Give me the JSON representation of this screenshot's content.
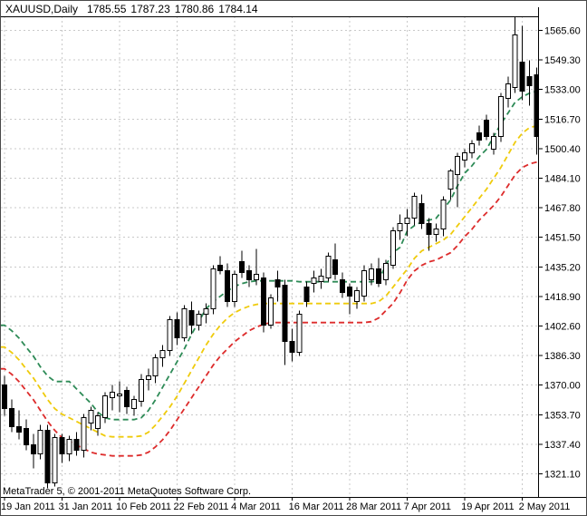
{
  "window": {
    "title": {
      "symbol_period": "XAUUSD,Daily",
      "open": "1785.55",
      "high": "1787.23",
      "low": "1780.86",
      "close": "1784.14"
    },
    "watermark": "MetaTrader 5, © 2001-2011 MetaQuotes Software Corp."
  },
  "chart_data": {
    "type": "candlestick",
    "symbol": "XAUUSD",
    "timeframe": "Daily",
    "title": "XAUUSD,Daily  1785.55 1787.23 1780.86 1784.14",
    "grid": true,
    "legend": false,
    "ylim": [
      1310,
      1580
    ],
    "y_axis": {
      "side": "right",
      "tick_step": 16.3,
      "tick_labels": [
        "1565.60",
        "1549.30",
        "1533.00",
        "1516.70",
        "1500.40",
        "1484.10",
        "1467.80",
        "1451.50",
        "1435.20",
        "1418.90",
        "1402.60",
        "1386.30",
        "1370.00",
        "1353.70",
        "1337.40",
        "1321.10"
      ],
      "tick_values": [
        1565.6,
        1549.3,
        1533.0,
        1516.7,
        1500.4,
        1484.1,
        1467.8,
        1451.5,
        1435.2,
        1418.9,
        1402.6,
        1386.3,
        1370.0,
        1353.7,
        1337.4,
        1321.1
      ]
    },
    "x_axis": {
      "tick_labels": [
        "19 Jan 2011",
        "31 Jan 2011",
        "10 Feb 2011",
        "22 Feb 2011",
        "4 Mar 2011",
        "16 Mar 2011",
        "28 Mar 2011",
        "7 Apr 2011",
        "19 Apr 2011",
        "2 May 2011"
      ],
      "tick_bars": [
        0,
        8,
        16,
        24,
        32,
        40,
        48,
        56,
        64,
        72
      ]
    },
    "candles": {
      "ohlc": [
        [
          1370,
          1375,
          1353,
          1357
        ],
        [
          1357,
          1362,
          1344,
          1347
        ],
        [
          1347,
          1356,
          1340,
          1344
        ],
        [
          1346,
          1351,
          1334,
          1337
        ],
        [
          1337,
          1343,
          1324,
          1332
        ],
        [
          1332,
          1348,
          1329,
          1345
        ],
        [
          1345,
          1348,
          1313,
          1316
        ],
        [
          1316,
          1343,
          1314,
          1341
        ],
        [
          1341,
          1343,
          1327,
          1332
        ],
        [
          1332,
          1342,
          1328,
          1340
        ],
        [
          1340,
          1344,
          1331,
          1334
        ],
        [
          1334,
          1354,
          1330,
          1352
        ],
        [
          1349,
          1358,
          1345,
          1356
        ],
        [
          1346,
          1355,
          1342,
          1353
        ],
        [
          1352,
          1366,
          1349,
          1364
        ],
        [
          1363,
          1370,
          1356,
          1366
        ],
        [
          1364,
          1372,
          1355,
          1365
        ],
        [
          1367,
          1369,
          1354,
          1358
        ],
        [
          1357,
          1364,
          1353,
          1362
        ],
        [
          1361,
          1376,
          1358,
          1373
        ],
        [
          1373,
          1379,
          1367,
          1375
        ],
        [
          1375,
          1387,
          1371,
          1385
        ],
        [
          1385,
          1392,
          1380,
          1389
        ],
        [
          1389,
          1408,
          1386,
          1406
        ],
        [
          1406,
          1410,
          1392,
          1396
        ],
        [
          1396,
          1414,
          1394,
          1412
        ],
        [
          1411,
          1416,
          1398,
          1403
        ],
        [
          1403,
          1411,
          1400,
          1409
        ],
        [
          1409,
          1415,
          1404,
          1412
        ],
        [
          1412,
          1436,
          1409,
          1434
        ],
        [
          1436,
          1441,
          1431,
          1433
        ],
        [
          1433,
          1437,
          1413,
          1416
        ],
        [
          1416,
          1433,
          1413,
          1431
        ],
        [
          1438,
          1444,
          1429,
          1432
        ],
        [
          1433,
          1436,
          1424,
          1428
        ],
        [
          1428,
          1445,
          1425,
          1431
        ],
        [
          1429,
          1432,
          1399,
          1403
        ],
        [
          1403,
          1420,
          1401,
          1418
        ],
        [
          1428,
          1433,
          1416,
          1424
        ],
        [
          1425,
          1428,
          1381,
          1394
        ],
        [
          1394,
          1401,
          1383,
          1388
        ],
        [
          1388,
          1411,
          1386,
          1409
        ],
        [
          1424,
          1427,
          1413,
          1416
        ],
        [
          1426,
          1433,
          1421,
          1429
        ],
        [
          1427,
          1434,
          1423,
          1430
        ],
        [
          1429,
          1443,
          1427,
          1441
        ],
        [
          1439,
          1448,
          1428,
          1431
        ],
        [
          1428,
          1432,
          1418,
          1421
        ],
        [
          1424,
          1426,
          1409,
          1419
        ],
        [
          1416,
          1424,
          1412,
          1422
        ],
        [
          1419,
          1436,
          1416,
          1433
        ],
        [
          1428,
          1437,
          1425,
          1434
        ],
        [
          1434,
          1440,
          1424,
          1426
        ],
        [
          1428,
          1439,
          1425,
          1437
        ],
        [
          1436,
          1457,
          1434,
          1455
        ],
        [
          1455,
          1464,
          1450,
          1459
        ],
        [
          1459,
          1467,
          1452,
          1462
        ],
        [
          1462,
          1476,
          1458,
          1474
        ],
        [
          1470,
          1475,
          1456,
          1459
        ],
        [
          1459,
          1462,
          1444,
          1453
        ],
        [
          1453,
          1459,
          1449,
          1456
        ],
        [
          1456,
          1474,
          1452,
          1472
        ],
        [
          1478,
          1489,
          1472,
          1488
        ],
        [
          1486,
          1498,
          1468,
          1496
        ],
        [
          1494,
          1500,
          1490,
          1498
        ],
        [
          1498,
          1505,
          1495,
          1503
        ],
        [
          1509,
          1513,
          1502,
          1505
        ],
        [
          1516,
          1519,
          1505,
          1507
        ],
        [
          1500,
          1509,
          1497,
          1507
        ],
        [
          1507,
          1531,
          1504,
          1529
        ],
        [
          1528,
          1540,
          1523,
          1536
        ],
        [
          1534,
          1574,
          1531,
          1563
        ],
        [
          1548,
          1568,
          1527,
          1532
        ],
        [
          1540,
          1549,
          1524,
          1535
        ],
        [
          1541,
          1545,
          1497,
          1507
        ]
      ]
    },
    "overlays": [
      {
        "name": "upper-band",
        "color": "#2e8b57",
        "values": [
          1403,
          1400,
          1396,
          1391,
          1386,
          1380,
          1375,
          1372,
          1372,
          1372,
          1368,
          1364,
          1360,
          1355,
          1352,
          1351,
          1351,
          1351,
          1351,
          1352,
          1356,
          1362,
          1369,
          1376,
          1383,
          1390,
          1398,
          1405,
          1412,
          1416,
          1419,
          1422,
          1424.5,
          1426,
          1427,
          1427.5,
          1427.5,
          1427.5,
          1427.5,
          1427.5,
          1427.5,
          1427,
          1427,
          1427,
          1427,
          1427,
          1427,
          1427,
          1427,
          1427,
          1427,
          1427,
          1427.5,
          1436,
          1443,
          1446,
          1455,
          1458,
          1460,
          1461,
          1462,
          1467,
          1472,
          1480,
          1487,
          1491,
          1496,
          1500,
          1507,
          1514,
          1520,
          1526,
          1529,
          1531,
          1532
        ]
      },
      {
        "name": "middle-band",
        "color": "#efcb0c",
        "values": [
          1391,
          1388,
          1384,
          1379,
          1374,
          1368,
          1362,
          1357,
          1354,
          1352,
          1350,
          1348,
          1346,
          1344,
          1342,
          1341.5,
          1341.5,
          1341.5,
          1341.5,
          1342,
          1344,
          1348,
          1353,
          1358,
          1364,
          1371,
          1378,
          1385,
          1392,
          1398,
          1403,
          1407,
          1410,
          1412,
          1413.5,
          1414.5,
          1415,
          1415,
          1415,
          1415,
          1415,
          1415,
          1415,
          1415,
          1415,
          1415,
          1415,
          1415,
          1415,
          1415,
          1415,
          1415,
          1416,
          1419,
          1424,
          1429,
          1434,
          1440,
          1444,
          1446,
          1448,
          1450,
          1453,
          1458,
          1463,
          1468,
          1473,
          1478,
          1484,
          1490,
          1497,
          1504,
          1509,
          1512,
          1513
        ]
      },
      {
        "name": "lower-band",
        "color": "#dd2c2c",
        "values": [
          1379,
          1376,
          1372,
          1367,
          1362,
          1356,
          1350,
          1345,
          1341,
          1339,
          1337,
          1335,
          1333,
          1332,
          1331.5,
          1331,
          1331,
          1331,
          1331,
          1331.5,
          1333,
          1336,
          1340,
          1345,
          1351,
          1357,
          1363,
          1369,
          1375,
          1381,
          1386,
          1390,
          1394,
          1397,
          1400,
          1402,
          1403.5,
          1404.5,
          1404.5,
          1404.5,
          1404.5,
          1404.5,
          1404.5,
          1404.5,
          1404.5,
          1404.5,
          1404.5,
          1404.5,
          1404.5,
          1404.5,
          1404.5,
          1405,
          1407,
          1411,
          1415,
          1421,
          1428,
          1433,
          1436,
          1438,
          1439,
          1441,
          1443,
          1447,
          1452,
          1456,
          1461,
          1465,
          1469,
          1474,
          1480,
          1486,
          1490,
          1492,
          1493
        ]
      }
    ],
    "colors": {
      "background": "#ffffff",
      "grid": "#c9c9c9",
      "axis": "#000000",
      "bull": "#ffffff",
      "bear": "#000000",
      "wick": "#000000"
    }
  }
}
